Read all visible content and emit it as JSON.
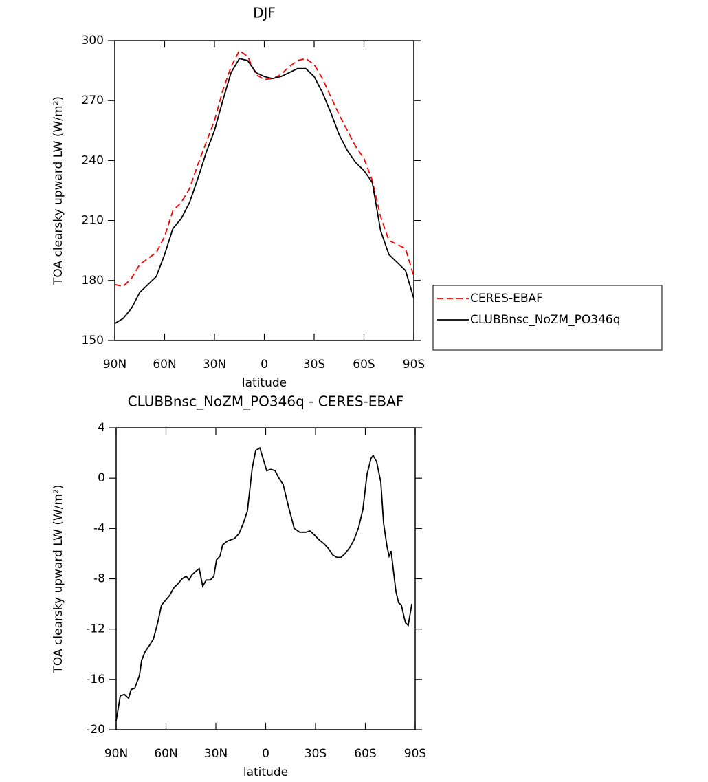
{
  "chart_data": [
    {
      "type": "line",
      "title": "DJF",
      "xlabel": "latitude",
      "ylabel": "TOA clearsky upward LW (W/m²)",
      "x": [
        90,
        85,
        80,
        75,
        70,
        65,
        60,
        55,
        50,
        45,
        40,
        35,
        30,
        25,
        20,
        15,
        10,
        5,
        0,
        -5,
        -10,
        -15,
        -20,
        -25,
        -30,
        -35,
        -40,
        -45,
        -50,
        -55,
        -60,
        -65,
        -70,
        -75,
        -80,
        -85,
        -90
      ],
      "series": [
        {
          "name": "CERES-EBAF",
          "color": "#ff0000",
          "dash": true,
          "values": [
            178,
            177,
            181,
            188,
            191,
            194,
            202,
            215,
            219,
            226,
            238,
            249,
            260,
            275,
            287,
            295,
            292,
            283,
            280.5,
            281,
            283,
            287,
            290,
            291,
            288,
            281,
            272,
            263,
            255,
            247,
            241,
            230,
            212,
            200,
            198,
            196,
            182
          ]
        },
        {
          "name": "CLUBBnsc_NoZM_PO346q",
          "color": "#000000",
          "dash": false,
          "values": [
            158.5,
            161,
            166,
            174,
            178,
            182,
            193,
            206,
            211,
            219,
            231,
            244,
            255,
            270,
            284,
            291,
            290,
            284,
            282,
            281,
            282,
            284,
            286,
            286,
            282,
            274,
            264,
            253,
            245,
            239,
            235,
            229,
            205,
            193,
            189,
            185,
            171
          ]
        }
      ],
      "xlim": [
        90,
        -90
      ],
      "xticks": [
        {
          "value": 90,
          "label": "90N"
        },
        {
          "value": 60,
          "label": "60N"
        },
        {
          "value": 30,
          "label": "30N"
        },
        0,
        {
          "value": -30,
          "label": "30S"
        },
        {
          "value": -60,
          "label": "60S"
        },
        {
          "value": -90,
          "label": "90S"
        }
      ],
      "ylim": [
        150,
        300
      ],
      "yticks": [
        150,
        180,
        210,
        240,
        270,
        300
      ],
      "legend": "right"
    },
    {
      "type": "line",
      "title": "CLUBBnsc_NoZM_PO346q - CERES-EBAF",
      "xlabel": "latitude",
      "ylabel": "TOA clearsky upward LW (W/m²)",
      "x": [
        90,
        87.5,
        85,
        82.5,
        81,
        78.8,
        76,
        74.7,
        72.6,
        70,
        67.6,
        65,
        62.7,
        60.2,
        57.7,
        55.2,
        52.8,
        50.3,
        47.8,
        46.1,
        44.5,
        42,
        40,
        37.9,
        35.8,
        33.3,
        31.2,
        29.6,
        27.5,
        25.9,
        23,
        18.8,
        16,
        13.5,
        11,
        8.1,
        6,
        3.5,
        1,
        -0.6,
        -3.1,
        -5.6,
        -8,
        -10.5,
        -13.8,
        -17.2,
        -20.5,
        -24.2,
        -26.7,
        -29.2,
        -32.1,
        -35,
        -37.8,
        -40.3,
        -42.8,
        -45.3,
        -47.8,
        -50.7,
        -53.2,
        -56,
        -58.5,
        -61,
        -63.5,
        -64.7,
        -66.8,
        -69.3,
        -71,
        -73,
        -74.3,
        -75.5,
        -78.4,
        -80,
        -81.7,
        -83.4,
        -84.2,
        -85.8,
        -88
      ],
      "series": [
        {
          "name": "CLUBBnsc_NoZM_PO346q - CERES-EBAF",
          "color": "#000000",
          "dash": false,
          "values": [
            -19.3,
            -17.3,
            -17.2,
            -17.5,
            -16.8,
            -16.7,
            -15.7,
            -14.5,
            -13.8,
            -13.3,
            -12.8,
            -11.5,
            -10.1,
            -9.7,
            -9.3,
            -8.7,
            -8.4,
            -8.0,
            -7.8,
            -8.1,
            -7.7,
            -7.4,
            -7.2,
            -8.6,
            -8.1,
            -8.1,
            -7.8,
            -6.5,
            -6.2,
            -5.3,
            -5.0,
            -4.8,
            -4.4,
            -3.6,
            -2.6,
            0.8,
            2.2,
            2.4,
            1.3,
            0.6,
            0.7,
            0.6,
            0.0,
            -0.5,
            -2.3,
            -4.0,
            -4.3,
            -4.3,
            -4.2,
            -4.5,
            -4.9,
            -5.2,
            -5.6,
            -6.1,
            -6.3,
            -6.3,
            -6.0,
            -5.5,
            -4.9,
            -3.9,
            -2.5,
            0.3,
            1.6,
            1.8,
            1.3,
            -0.3,
            -3.6,
            -5.4,
            -6.2,
            -5.8,
            -9.0,
            -9.9,
            -10.1,
            -11.1,
            -11.5,
            -11.7,
            -10.0
          ]
        }
      ],
      "xlim": [
        90,
        -90
      ],
      "xticks": [
        {
          "value": 90,
          "label": "90N"
        },
        {
          "value": 60,
          "label": "60N"
        },
        {
          "value": 30,
          "label": "30N"
        },
        0,
        {
          "value": -30,
          "label": "30S"
        },
        {
          "value": -60,
          "label": "60S"
        },
        {
          "value": -90,
          "label": "90S"
        }
      ],
      "ylim": [
        -20,
        4
      ],
      "yticks": [
        -20,
        -16,
        -12,
        -8,
        -4,
        0,
        4
      ]
    }
  ]
}
